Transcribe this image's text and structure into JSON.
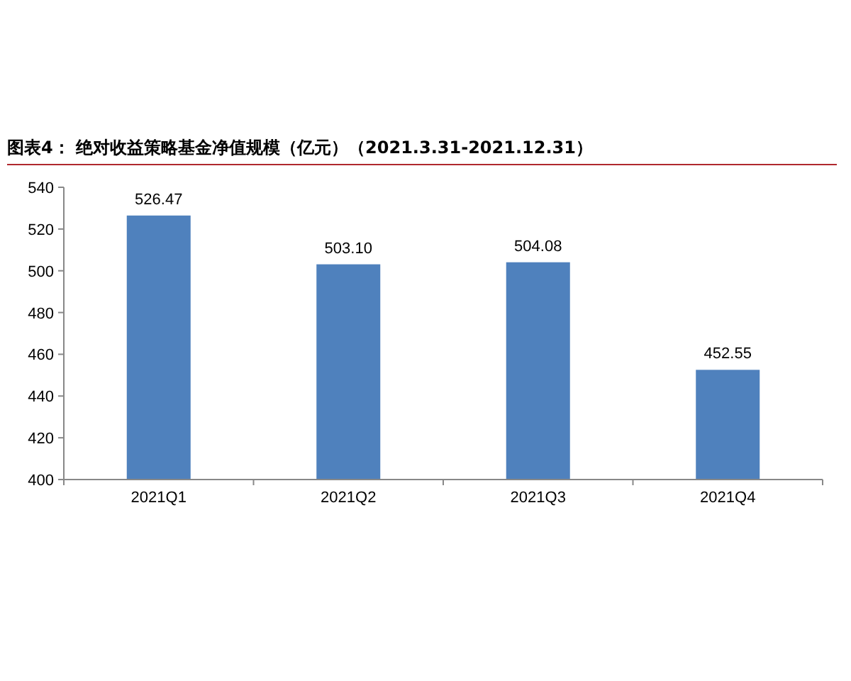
{
  "chart_data": {
    "type": "bar",
    "title": "图表4： 绝对收益策略基金净值规模（亿元）（2021.3.31-2021.12.31）",
    "categories": [
      "2021Q1",
      "2021Q2",
      "2021Q3",
      "2021Q4"
    ],
    "values": [
      526.47,
      503.1,
      504.08,
      452.55
    ],
    "value_labels": [
      "526.47",
      "503.10",
      "504.08",
      "452.55"
    ],
    "color": "#4f81bd",
    "ylim": [
      400,
      540
    ],
    "yticks": [
      400,
      420,
      440,
      460,
      480,
      500,
      520,
      540
    ],
    "grid": false
  }
}
